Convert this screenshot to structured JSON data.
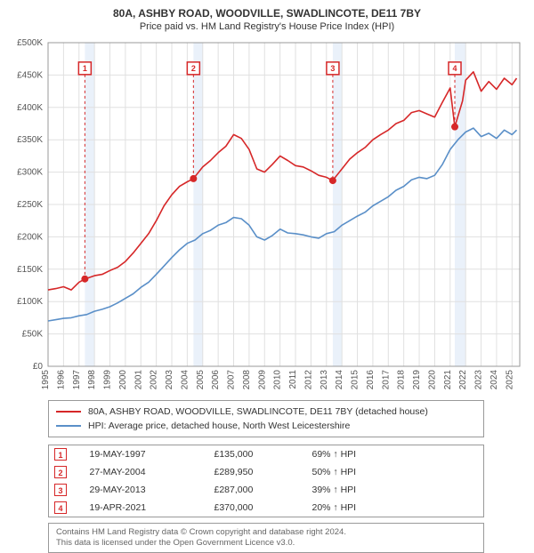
{
  "title": "80A, ASHBY ROAD, WOODVILLE, SWADLINCOTE, DE11 7BY",
  "subtitle": "Price paid vs. HM Land Registry's House Price Index (HPI)",
  "chart": {
    "type": "line",
    "background_color": "#ffffff",
    "grid_color": "#e0e0e0",
    "text_color": "#555555",
    "line_width": 1.6,
    "xlim": [
      1995,
      2025.5
    ],
    "ylim": [
      0,
      500000
    ],
    "ytick_step": 50000,
    "xtick_step": 1,
    "xticks": [
      1995,
      1996,
      1997,
      1998,
      1999,
      2000,
      2001,
      2002,
      2003,
      2004,
      2005,
      2006,
      2007,
      2008,
      2009,
      2010,
      2011,
      2012,
      2013,
      2014,
      2015,
      2016,
      2017,
      2018,
      2019,
      2020,
      2021,
      2022,
      2023,
      2024,
      2025
    ],
    "yticks": [
      0,
      50000,
      100000,
      150000,
      200000,
      250000,
      300000,
      350000,
      400000,
      450000,
      500000
    ],
    "ytick_labels": [
      "£0",
      "£50K",
      "£100K",
      "£150K",
      "£200K",
      "£250K",
      "£300K",
      "£350K",
      "£400K",
      "£450K",
      "£500K"
    ],
    "series": [
      {
        "name": "property",
        "label": "80A, ASHBY ROAD, WOODVILLE, SWADLINCOTE, DE11 7BY (detached house)",
        "color": "#d62728",
        "xs": [
          1995,
          1995.5,
          1996,
          1996.5,
          1997,
          1997.4,
          1998,
          1998.5,
          1999,
          1999.5,
          2000,
          2000.5,
          2001,
          2001.5,
          2002,
          2002.5,
          2003,
          2003.5,
          2004,
          2004.4,
          2005,
          2005.5,
          2006,
          2006.5,
          2007,
          2007.5,
          2008,
          2008.5,
          2009,
          2009.5,
          2010,
          2010.5,
          2011,
          2011.5,
          2012,
          2012.5,
          2013,
          2013.4,
          2014,
          2014.5,
          2015,
          2015.5,
          2016,
          2016.5,
          2017,
          2017.5,
          2018,
          2018.5,
          2019,
          2019.5,
          2020,
          2020.5,
          2021,
          2021.3,
          2021.8,
          2022,
          2022.5,
          2023,
          2023.5,
          2024,
          2024.5,
          2025,
          2025.3
        ],
        "ys": [
          118000,
          120000,
          123000,
          118000,
          130000,
          135000,
          140000,
          142000,
          148000,
          153000,
          162000,
          175000,
          190000,
          205000,
          225000,
          248000,
          265000,
          278000,
          285000,
          289950,
          308000,
          318000,
          330000,
          340000,
          358000,
          352000,
          335000,
          305000,
          300000,
          312000,
          325000,
          318000,
          310000,
          308000,
          302000,
          295000,
          292000,
          287000,
          305000,
          320000,
          330000,
          338000,
          350000,
          358000,
          365000,
          375000,
          380000,
          392000,
          395000,
          390000,
          385000,
          408000,
          430000,
          370000,
          410000,
          442000,
          455000,
          425000,
          440000,
          428000,
          445000,
          435000,
          445000
        ]
      },
      {
        "name": "hpi",
        "label": "HPI: Average price, detached house, North West Leicestershire",
        "color": "#5a8fc8",
        "xs": [
          1995,
          1995.5,
          1996,
          1996.5,
          1997,
          1997.5,
          1998,
          1998.5,
          1999,
          1999.5,
          2000,
          2000.5,
          2001,
          2001.5,
          2002,
          2002.5,
          2003,
          2003.5,
          2004,
          2004.5,
          2005,
          2005.5,
          2006,
          2006.5,
          2007,
          2007.5,
          2008,
          2008.5,
          2009,
          2009.5,
          2010,
          2010.5,
          2011,
          2011.5,
          2012,
          2012.5,
          2013,
          2013.5,
          2014,
          2014.5,
          2015,
          2015.5,
          2016,
          2016.5,
          2017,
          2017.5,
          2018,
          2018.5,
          2019,
          2019.5,
          2020,
          2020.5,
          2021,
          2021.5,
          2022,
          2022.5,
          2023,
          2023.5,
          2024,
          2024.5,
          2025,
          2025.3
        ],
        "ys": [
          70000,
          72000,
          74000,
          75000,
          78000,
          80000,
          85000,
          88000,
          92000,
          98000,
          105000,
          112000,
          122000,
          130000,
          142000,
          155000,
          168000,
          180000,
          190000,
          195000,
          205000,
          210000,
          218000,
          222000,
          230000,
          228000,
          218000,
          200000,
          195000,
          202000,
          212000,
          206000,
          205000,
          203000,
          200000,
          198000,
          205000,
          208000,
          218000,
          225000,
          232000,
          238000,
          248000,
          255000,
          262000,
          272000,
          278000,
          288000,
          292000,
          290000,
          295000,
          312000,
          335000,
          350000,
          362000,
          368000,
          355000,
          360000,
          352000,
          365000,
          358000,
          365000
        ]
      }
    ],
    "shaded_bands": [
      {
        "from": 1997.38,
        "to": 1998.0,
        "color": "#eaf1fa"
      },
      {
        "from": 2004.4,
        "to": 2005.0,
        "color": "#eaf1fa"
      },
      {
        "from": 2013.41,
        "to": 2014.0,
        "color": "#eaf1fa"
      },
      {
        "from": 2021.3,
        "to": 2022.0,
        "color": "#eaf1fa"
      }
    ],
    "sale_markers": [
      {
        "n": 1,
        "x": 1997.38,
        "y": 135000,
        "box_y": 470000
      },
      {
        "n": 2,
        "x": 2004.4,
        "y": 289950,
        "box_y": 470000
      },
      {
        "n": 3,
        "x": 2013.41,
        "y": 287000,
        "box_y": 470000
      },
      {
        "n": 4,
        "x": 2021.3,
        "y": 370000,
        "box_y": 470000
      }
    ],
    "sale_marker_style": {
      "vline_color": "#d62728",
      "vline_dash": "3,3",
      "vline_width": 1,
      "dot_fill": "#d62728",
      "dot_radius": 4,
      "box_size": 14,
      "box_stroke": "#d62728",
      "box_fill": "#ffffff"
    }
  },
  "sales": [
    {
      "n": 1,
      "date": "19-MAY-1997",
      "price": "£135,000",
      "diff": "69% ↑ HPI"
    },
    {
      "n": 2,
      "date": "27-MAY-2004",
      "price": "£289,950",
      "diff": "50% ↑ HPI"
    },
    {
      "n": 3,
      "date": "29-MAY-2013",
      "price": "£287,000",
      "diff": "39% ↑ HPI"
    },
    {
      "n": 4,
      "date": "19-APR-2021",
      "price": "£370,000",
      "diff": "20% ↑ HPI"
    }
  ],
  "attribution": {
    "line1": "Contains HM Land Registry data © Crown copyright and database right 2024.",
    "line2": "This data is licensed under the Open Government Licence v3.0."
  }
}
